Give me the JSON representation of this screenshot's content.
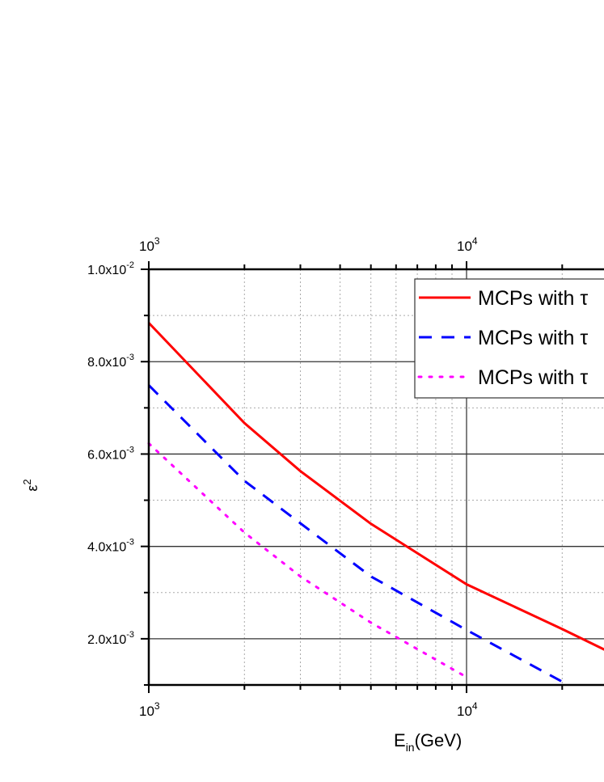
{
  "chart_data": {
    "type": "line",
    "xlabel": "E",
    "xlabel_sub": "in",
    "xlabel_unit": "(GeV)",
    "ylabel": "ε",
    "ylabel_sup": "2",
    "x_scale": "log",
    "xlim": [
      1000,
      100000
    ],
    "ylim": [
      0.001,
      0.01
    ],
    "x_ticks": [
      {
        "base": "10",
        "exp": "3",
        "value": 1000
      },
      {
        "base": "10",
        "exp": "4",
        "value": 10000
      }
    ],
    "y_ticks": [
      {
        "mant": "1.0x10",
        "exp": "-2",
        "value": 0.01
      },
      {
        "mant": "8.0x10",
        "exp": "-3",
        "value": 0.008
      },
      {
        "mant": "6.0x10",
        "exp": "-3",
        "value": 0.006
      },
      {
        "mant": "4.0x10",
        "exp": "-3",
        "value": 0.004
      },
      {
        "mant": "2.0x10",
        "exp": "-3",
        "value": 0.002
      }
    ],
    "grid": true,
    "top_axis_mirrored": true,
    "legend_position": "top-right",
    "series": [
      {
        "name": "MCPs with τ",
        "color": "#ff0000",
        "style": "solid",
        "x": [
          1000,
          2000,
          3000,
          5000,
          10000,
          20000,
          30000
        ],
        "y": [
          0.00884,
          0.00667,
          0.00563,
          0.00449,
          0.00318,
          0.00221,
          0.00162
        ]
      },
      {
        "name": "MCPs with τ",
        "color": "#0000ff",
        "style": "dashed",
        "x": [
          1000,
          2000,
          3000,
          5000,
          10000,
          20000
        ],
        "y": [
          0.00749,
          0.00542,
          0.0045,
          0.00335,
          0.00219,
          0.00107
        ]
      },
      {
        "name": "MCPs with τ",
        "color": "#ff00ff",
        "style": "dotted",
        "x": [
          1000,
          2000,
          3000,
          5000,
          10000
        ],
        "y": [
          0.00623,
          0.0043,
          0.00335,
          0.00235,
          0.00117
        ]
      }
    ]
  }
}
